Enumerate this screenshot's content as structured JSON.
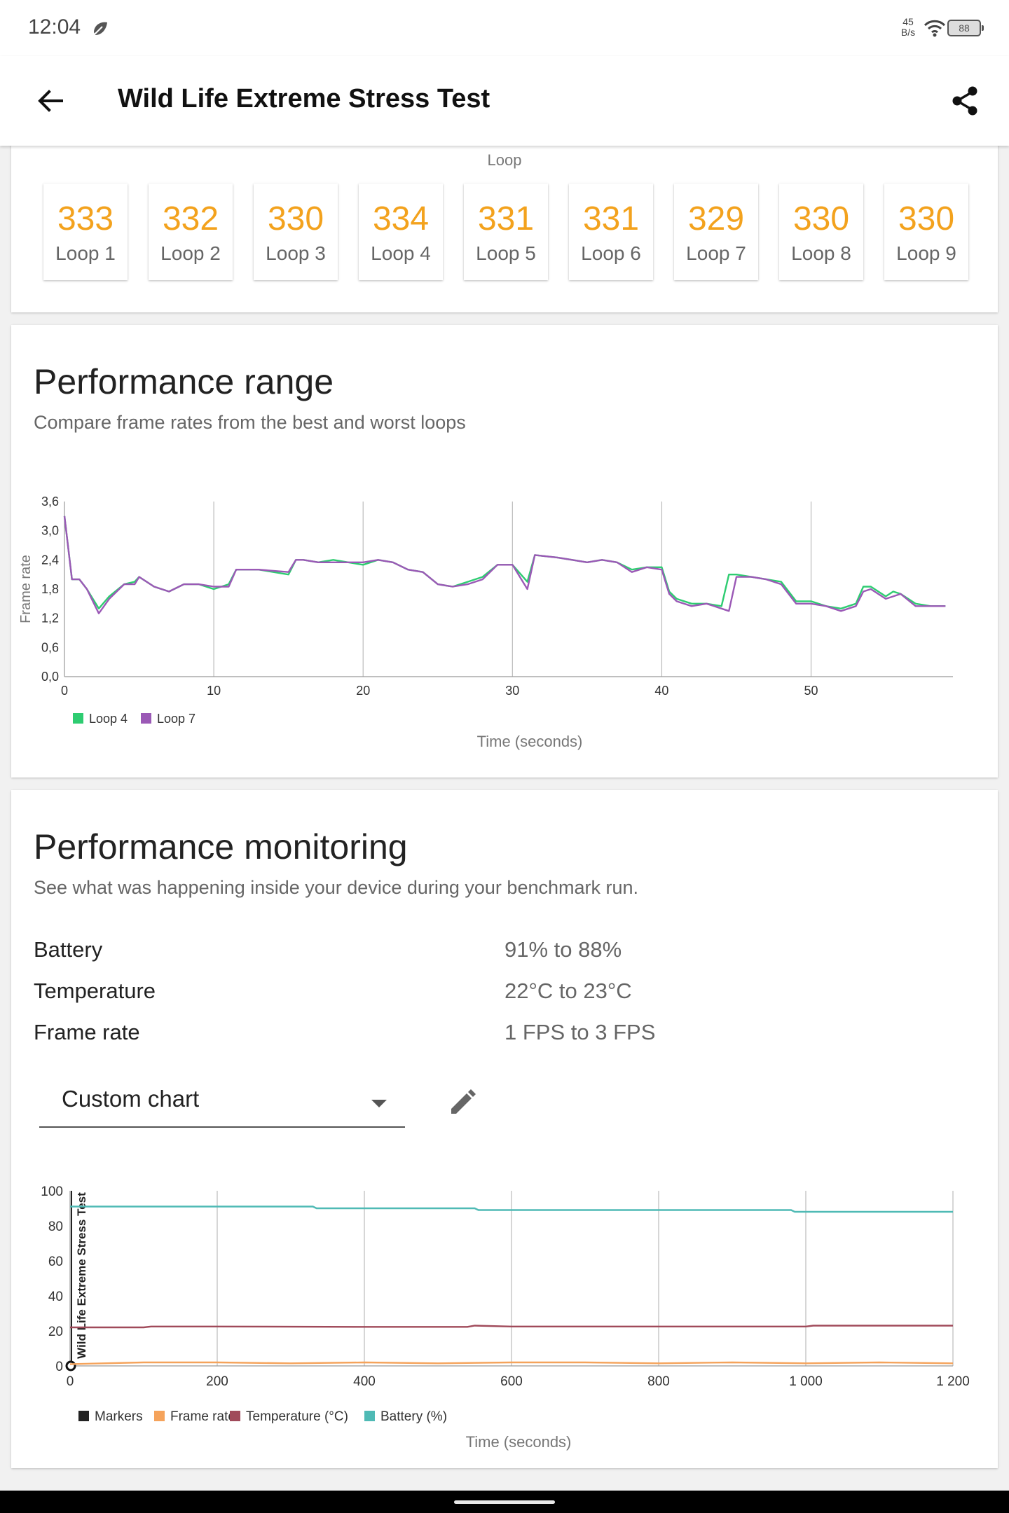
{
  "status_bar": {
    "time": "12:04",
    "net_speed_value": "45",
    "net_speed_unit": "B/s",
    "battery": "88"
  },
  "app_bar": {
    "title": "Wild Life Extreme Stress Test",
    "back_icon": "arrow-back-icon",
    "share_icon": "share-icon"
  },
  "loop_card": {
    "axis_label": "Loop",
    "scores": [
      {
        "score": "333",
        "label": "Loop 1"
      },
      {
        "score": "332",
        "label": "Loop 2"
      },
      {
        "score": "330",
        "label": "Loop 3"
      },
      {
        "score": "334",
        "label": "Loop 4"
      },
      {
        "score": "331",
        "label": "Loop 5"
      },
      {
        "score": "331",
        "label": "Loop 6"
      },
      {
        "score": "329",
        "label": "Loop 7"
      },
      {
        "score": "330",
        "label": "Loop 8"
      },
      {
        "score": "330",
        "label": "Loop 9"
      }
    ],
    "accent_color": "#f3a21d"
  },
  "range_card": {
    "title": "Performance range",
    "subtitle": "Compare frame rates from the best and worst loops"
  },
  "monitor_card": {
    "title": "Performance monitoring",
    "subtitle": "See what was happening inside your device during your benchmark run.",
    "stats": [
      {
        "label": "Battery",
        "value": "91% to 88%"
      },
      {
        "label": "Temperature",
        "value": "22°C to 23°C"
      },
      {
        "label": "Frame rate",
        "value": "1 FPS to 3 FPS"
      }
    ],
    "dropdown": {
      "selected": "Custom chart",
      "icon": "chevron-down-icon"
    },
    "edit_icon": "pencil-icon"
  },
  "chart_data": [
    {
      "type": "line",
      "ylabel": "Frame rate",
      "xlabel": "Time (seconds)",
      "xlim": [
        0,
        59.5
      ],
      "ylim": [
        0,
        3.6
      ],
      "x_ticks": [
        "0",
        "10",
        "20",
        "30",
        "40",
        "50"
      ],
      "y_ticks": [
        "0,0",
        "0,6",
        "1,2",
        "1,8",
        "2,4",
        "3,0",
        "3,6"
      ],
      "legend_position": "bottom-left",
      "grid": "vertical",
      "series": [
        {
          "name": "Loop 4",
          "color": "#2ecc71",
          "points": [
            [
              0,
              3.3
            ],
            [
              0.5,
              2.0
            ],
            [
              1,
              2.0
            ],
            [
              1.5,
              1.8
            ],
            [
              2.3,
              1.4
            ],
            [
              3,
              1.65
            ],
            [
              4,
              1.9
            ],
            [
              4.7,
              1.95
            ],
            [
              5,
              2.05
            ],
            [
              6,
              1.85
            ],
            [
              7,
              1.75
            ],
            [
              8,
              1.9
            ],
            [
              9,
              1.9
            ],
            [
              10,
              1.8
            ],
            [
              11,
              1.9
            ],
            [
              11.5,
              2.2
            ],
            [
              13,
              2.2
            ],
            [
              15,
              2.1
            ],
            [
              15.5,
              2.4
            ],
            [
              16,
              2.4
            ],
            [
              17,
              2.35
            ],
            [
              18,
              2.4
            ],
            [
              19,
              2.35
            ],
            [
              20,
              2.3
            ],
            [
              21,
              2.4
            ],
            [
              22,
              2.35
            ],
            [
              23,
              2.2
            ],
            [
              24,
              2.15
            ],
            [
              25,
              1.9
            ],
            [
              26,
              1.85
            ],
            [
              27,
              1.95
            ],
            [
              28,
              2.05
            ],
            [
              29,
              2.3
            ],
            [
              30,
              2.3
            ],
            [
              31,
              1.95
            ],
            [
              31.5,
              2.5
            ],
            [
              33,
              2.45
            ],
            [
              34,
              2.4
            ],
            [
              35,
              2.35
            ],
            [
              36,
              2.4
            ],
            [
              37,
              2.35
            ],
            [
              38,
              2.2
            ],
            [
              39,
              2.25
            ],
            [
              40,
              2.25
            ],
            [
              40.5,
              1.75
            ],
            [
              41,
              1.6
            ],
            [
              42,
              1.5
            ],
            [
              43,
              1.5
            ],
            [
              44,
              1.45
            ],
            [
              44.5,
              2.1
            ],
            [
              45,
              2.1
            ],
            [
              46,
              2.05
            ],
            [
              47,
              2.0
            ],
            [
              48,
              1.95
            ],
            [
              49,
              1.55
            ],
            [
              50,
              1.55
            ],
            [
              51,
              1.45
            ],
            [
              52,
              1.4
            ],
            [
              53,
              1.5
            ],
            [
              53.5,
              1.85
            ],
            [
              54,
              1.85
            ],
            [
              55,
              1.65
            ],
            [
              55.5,
              1.75
            ],
            [
              56,
              1.7
            ],
            [
              57,
              1.5
            ],
            [
              58,
              1.45
            ],
            [
              59,
              1.45
            ]
          ]
        },
        {
          "name": "Loop 7",
          "color": "#9b59b6",
          "points": [
            [
              0,
              3.3
            ],
            [
              0.5,
              2.0
            ],
            [
              1,
              2.0
            ],
            [
              1.5,
              1.8
            ],
            [
              2.3,
              1.3
            ],
            [
              3,
              1.6
            ],
            [
              4,
              1.9
            ],
            [
              4.7,
              1.9
            ],
            [
              5,
              2.05
            ],
            [
              6,
              1.85
            ],
            [
              7,
              1.75
            ],
            [
              8,
              1.9
            ],
            [
              9,
              1.9
            ],
            [
              10,
              1.85
            ],
            [
              11,
              1.85
            ],
            [
              11.5,
              2.2
            ],
            [
              13,
              2.2
            ],
            [
              15,
              2.15
            ],
            [
              15.5,
              2.4
            ],
            [
              16,
              2.4
            ],
            [
              17,
              2.35
            ],
            [
              18,
              2.35
            ],
            [
              19,
              2.35
            ],
            [
              20,
              2.35
            ],
            [
              21,
              2.4
            ],
            [
              22,
              2.35
            ],
            [
              23,
              2.2
            ],
            [
              24,
              2.15
            ],
            [
              25,
              1.9
            ],
            [
              26,
              1.85
            ],
            [
              27,
              1.9
            ],
            [
              28,
              2.0
            ],
            [
              29,
              2.3
            ],
            [
              30,
              2.3
            ],
            [
              31,
              1.8
            ],
            [
              31.5,
              2.5
            ],
            [
              33,
              2.45
            ],
            [
              34,
              2.4
            ],
            [
              35,
              2.35
            ],
            [
              36,
              2.4
            ],
            [
              37,
              2.35
            ],
            [
              38,
              2.15
            ],
            [
              39,
              2.25
            ],
            [
              40,
              2.2
            ],
            [
              40.5,
              1.7
            ],
            [
              41,
              1.55
            ],
            [
              42,
              1.45
            ],
            [
              43,
              1.5
            ],
            [
              44,
              1.4
            ],
            [
              44.5,
              1.35
            ],
            [
              45,
              2.05
            ],
            [
              46,
              2.05
            ],
            [
              47,
              2.0
            ],
            [
              48,
              1.9
            ],
            [
              49,
              1.5
            ],
            [
              50,
              1.5
            ],
            [
              51,
              1.45
            ],
            [
              52,
              1.35
            ],
            [
              53,
              1.45
            ],
            [
              53.5,
              1.75
            ],
            [
              54,
              1.8
            ],
            [
              55,
              1.6
            ],
            [
              55.5,
              1.65
            ],
            [
              56,
              1.7
            ],
            [
              57,
              1.45
            ],
            [
              58,
              1.45
            ],
            [
              59,
              1.45
            ]
          ]
        }
      ]
    },
    {
      "type": "line",
      "annotation": "Wild Life Extreme Stress Test",
      "xlabel": "Time (seconds)",
      "xlim": [
        0,
        1200
      ],
      "ylim": [
        0,
        100
      ],
      "x_ticks": [
        "0",
        "200",
        "400",
        "600",
        "800",
        "1 000",
        "1 200"
      ],
      "y_ticks": [
        "0",
        "20",
        "40",
        "60",
        "80",
        "100"
      ],
      "legend_position": "bottom-left",
      "grid": "vertical",
      "series": [
        {
          "name": "Markers",
          "color": "#222222",
          "points": [
            [
              0,
              0
            ]
          ]
        },
        {
          "name": "Frame rate",
          "color": "#f5a35b",
          "points": [
            [
              0,
              1
            ],
            [
              100,
              2
            ],
            [
              200,
              2
            ],
            [
              300,
              1.5
            ],
            [
              400,
              2
            ],
            [
              500,
              1.5
            ],
            [
              600,
              2
            ],
            [
              700,
              2
            ],
            [
              800,
              1.5
            ],
            [
              900,
              2
            ],
            [
              1000,
              1.5
            ],
            [
              1100,
              2
            ],
            [
              1200,
              1.5
            ]
          ]
        },
        {
          "name": "Temperature (°C)",
          "color": "#a04a5a",
          "points": [
            [
              0,
              22
            ],
            [
              100,
              22
            ],
            [
              110,
              22.5
            ],
            [
              200,
              22.5
            ],
            [
              400,
              22.3
            ],
            [
              540,
              22.3
            ],
            [
              550,
              23
            ],
            [
              600,
              22.5
            ],
            [
              1000,
              22.5
            ],
            [
              1010,
              23
            ],
            [
              1200,
              23
            ]
          ]
        },
        {
          "name": "Battery (%)",
          "color": "#4fbab5",
          "points": [
            [
              0,
              91
            ],
            [
              330,
              91
            ],
            [
              335,
              90
            ],
            [
              550,
              90
            ],
            [
              555,
              89
            ],
            [
              980,
              89
            ],
            [
              985,
              88
            ],
            [
              1200,
              88
            ]
          ]
        }
      ]
    }
  ]
}
